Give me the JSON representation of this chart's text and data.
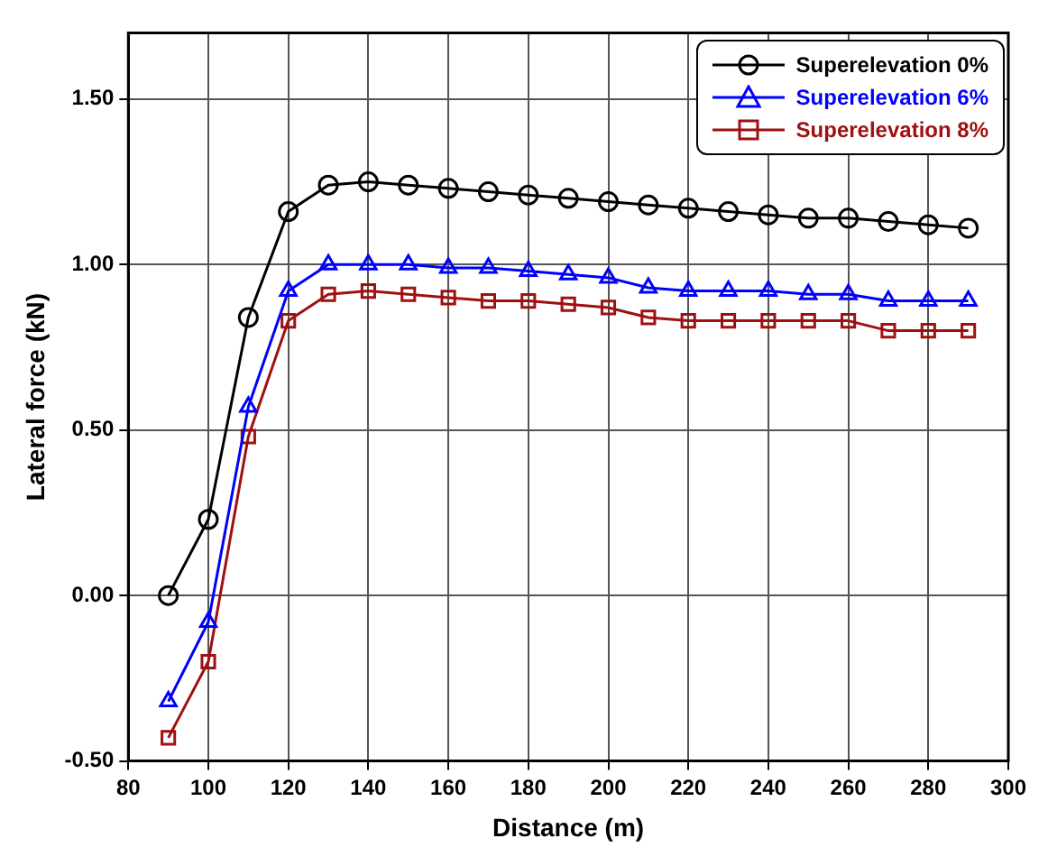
{
  "chart_data": {
    "type": "line",
    "xlabel": "Distance (m)",
    "ylabel": "Lateral force (kN)",
    "x": [
      90,
      100,
      110,
      120,
      130,
      140,
      150,
      160,
      170,
      180,
      190,
      200,
      210,
      220,
      230,
      240,
      250,
      260,
      270,
      280,
      290
    ],
    "series": [
      {
        "name": "Superelevation 0%",
        "color": "#000000",
        "marker": "circle",
        "values": [
          0.0,
          0.23,
          0.84,
          1.16,
          1.24,
          1.25,
          1.24,
          1.23,
          1.22,
          1.21,
          1.2,
          1.19,
          1.18,
          1.17,
          1.16,
          1.15,
          1.14,
          1.14,
          1.13,
          1.12,
          1.11
        ]
      },
      {
        "name": "Superelevation 6%",
        "color": "#0000ff",
        "marker": "triangle",
        "values": [
          -0.32,
          -0.08,
          0.57,
          0.92,
          1.0,
          1.0,
          1.0,
          0.99,
          0.99,
          0.98,
          0.97,
          0.96,
          0.93,
          0.92,
          0.92,
          0.92,
          0.91,
          0.91,
          0.89,
          0.89,
          0.89
        ]
      },
      {
        "name": "Superelevation 8%",
        "color": "#a01010",
        "marker": "square",
        "values": [
          -0.43,
          -0.2,
          0.48,
          0.83,
          0.91,
          0.92,
          0.91,
          0.9,
          0.89,
          0.89,
          0.88,
          0.87,
          0.84,
          0.83,
          0.83,
          0.83,
          0.83,
          0.83,
          0.8,
          0.8,
          0.8
        ]
      }
    ],
    "xlim": [
      80,
      300
    ],
    "xticks": [
      80,
      100,
      120,
      140,
      160,
      180,
      200,
      220,
      240,
      260,
      280,
      300
    ],
    "ylim": [
      -0.5,
      1.7
    ],
    "yticks": [
      {
        "value": -0.5,
        "label": "-0.50"
      },
      {
        "value": 0,
        "label": "0.00"
      },
      {
        "value": 0.5,
        "label": "0.50"
      },
      {
        "value": 1,
        "label": "1.00"
      },
      {
        "value": 1.5,
        "label": "1.50"
      }
    ],
    "grid": true,
    "legend": "top right",
    "line_style": "solid"
  }
}
